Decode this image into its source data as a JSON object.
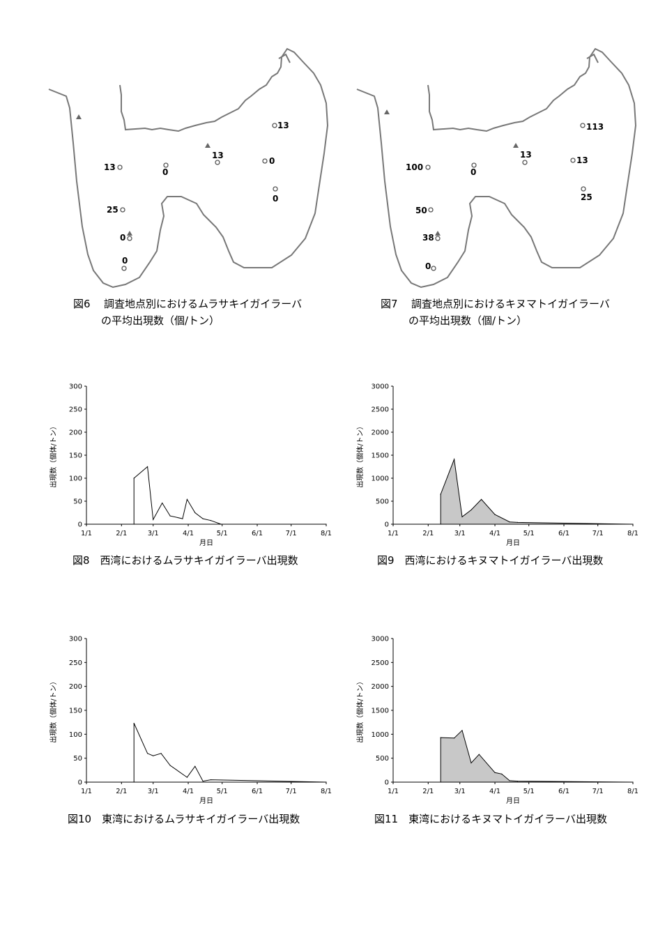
{
  "figures": {
    "fig6": {
      "number": "図6",
      "caption_line1": "調査地点別におけるムラサキイガイラーバ",
      "caption_line2": "の平均出現数（個/トン）",
      "labels": [
        "13",
        "13",
        "0",
        "0",
        "13",
        "0",
        "25",
        "0",
        "0"
      ]
    },
    "fig7": {
      "number": "図7",
      "caption_line1": "調査地点別におけるキヌマトイガイラーバ",
      "caption_line2": "の平均出現数（個/トン）",
      "labels": [
        "113",
        "13",
        "100",
        "0",
        "13",
        "25",
        "50",
        "38",
        "0"
      ]
    },
    "fig8": {
      "caption": "図8　西湾におけるムラサキイガイラーバ出現数"
    },
    "fig9": {
      "caption": "図9　西湾におけるキヌマトイガイラーバ出現数"
    },
    "fig10": {
      "caption": "図10　東湾におけるムラサキイガイラーバ出現数"
    },
    "fig11": {
      "caption": "図11　東湾におけるキヌマトイガイラーバ出現数"
    }
  },
  "chart_data": [
    {
      "id": "fig8",
      "type": "line",
      "fill": false,
      "xlabel": "月日",
      "ylabel": "出現数（個体/トン）",
      "xticks": [
        "1/1",
        "2/1",
        "3/1",
        "4/1",
        "5/1",
        "6/1",
        "7/1",
        "8/1"
      ],
      "yticks": [
        0,
        50,
        100,
        150,
        200,
        250,
        300
      ],
      "ylim": [
        0,
        300
      ],
      "x": [
        "1/1",
        "2/12",
        "2/12",
        "2/24",
        "3/1",
        "3/9",
        "3/16",
        "3/27",
        "3/31",
        "4/7",
        "4/14",
        "4/21",
        "4/30",
        "8/1"
      ],
      "y": [
        0,
        0,
        100,
        125,
        10,
        46,
        18,
        12,
        54,
        25,
        12,
        8,
        0,
        0
      ]
    },
    {
      "id": "fig9",
      "type": "area",
      "fill": true,
      "xlabel": "月日",
      "ylabel": "出現数（個体/トン）",
      "xticks": [
        "1/1",
        "2/1",
        "3/1",
        "4/1",
        "5/1",
        "6/1",
        "7/1",
        "8/1"
      ],
      "yticks": [
        0,
        500,
        1000,
        1500,
        2000,
        2500,
        3000
      ],
      "ylim": [
        0,
        3000
      ],
      "x": [
        "1/1",
        "2/12",
        "2/12",
        "2/24",
        "3/3",
        "3/11",
        "3/20",
        "4/1",
        "4/14",
        "4/21",
        "8/1"
      ],
      "y": [
        0,
        0,
        650,
        1410,
        160,
        310,
        540,
        210,
        50,
        40,
        0
      ]
    },
    {
      "id": "fig10",
      "type": "line",
      "fill": false,
      "xlabel": "月日",
      "ylabel": "出現数（個体/トン）",
      "xticks": [
        "1/1",
        "2/1",
        "3/1",
        "4/1",
        "5/1",
        "6/1",
        "7/1",
        "8/1"
      ],
      "yticks": [
        0,
        50,
        100,
        150,
        200,
        250,
        300
      ],
      "ylim": [
        0,
        300
      ],
      "x": [
        "1/1",
        "2/12",
        "2/12",
        "2/24",
        "3/1",
        "3/8",
        "3/16",
        "3/31",
        "4/7",
        "4/14",
        "4/21",
        "8/1"
      ],
      "y": [
        0,
        0,
        123,
        60,
        55,
        60,
        35,
        10,
        33,
        2,
        5,
        0
      ]
    },
    {
      "id": "fig11",
      "type": "area",
      "fill": true,
      "xlabel": "月日",
      "ylabel": "出現数（個体/トン）",
      "xticks": [
        "1/1",
        "2/1",
        "3/1",
        "4/1",
        "5/1",
        "6/1",
        "7/1",
        "8/1"
      ],
      "yticks": [
        0,
        500,
        1000,
        1500,
        2000,
        2500,
        3000
      ],
      "ylim": [
        0,
        3000
      ],
      "x": [
        "1/1",
        "2/12",
        "2/12",
        "2/24",
        "3/3",
        "3/11",
        "3/18",
        "4/1",
        "4/7",
        "4/14",
        "4/21",
        "8/1"
      ],
      "y": [
        0,
        0,
        930,
        920,
        1080,
        400,
        580,
        200,
        170,
        30,
        20,
        0
      ]
    }
  ]
}
